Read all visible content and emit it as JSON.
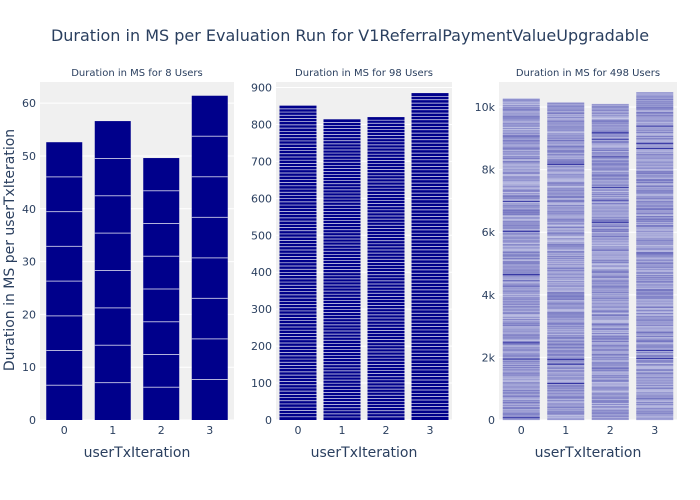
{
  "chart_data": {
    "type": "bar",
    "title": "Duration in MS per Evaluation Run for V1ReferralPaymentValueUpgradable",
    "ylabel": "Duration in MS per userTxIteration",
    "colors": {
      "bar": "#00008b",
      "plot_bg": "#f0f0f0",
      "grid": "#ffffff",
      "text": "#2a3f5f"
    },
    "grid": true,
    "panels": [
      {
        "subtitle": "Duration in MS for 8 Users",
        "xlabel": "userTxIteration",
        "categories": [
          "0",
          "1",
          "2",
          "3"
        ],
        "values": [
          52.6,
          56.6,
          49.6,
          61.4
        ],
        "ylim": [
          0,
          64
        ],
        "yticks": [
          0,
          10,
          20,
          30,
          40,
          50,
          60
        ],
        "ytick_labels": [
          "0",
          "10",
          "20",
          "30",
          "40",
          "50",
          "60"
        ],
        "segments": 8
      },
      {
        "subtitle": "Duration in MS for 98 Users",
        "xlabel": "userTxIteration",
        "categories": [
          "0",
          "1",
          "2",
          "3"
        ],
        "values": [
          851,
          814,
          820,
          885
        ],
        "ylim": [
          0,
          915
        ],
        "yticks": [
          0,
          100,
          200,
          300,
          400,
          500,
          600,
          700,
          800,
          900
        ],
        "ytick_labels": [
          "0",
          "100",
          "200",
          "300",
          "400",
          "500",
          "600",
          "700",
          "800",
          "900"
        ],
        "segments": 98
      },
      {
        "subtitle": "Duration in MS for 498 Users",
        "xlabel": "userTxIteration",
        "categories": [
          "0",
          "1",
          "2",
          "3"
        ],
        "values": [
          10280,
          10150,
          10100,
          10480
        ],
        "ylim": [
          0,
          10800
        ],
        "yticks": [
          0,
          2000,
          4000,
          6000,
          8000,
          10000
        ],
        "ytick_labels": [
          "0",
          "2k",
          "4k",
          "6k",
          "8k",
          "10k"
        ],
        "segments": 498
      }
    ]
  }
}
